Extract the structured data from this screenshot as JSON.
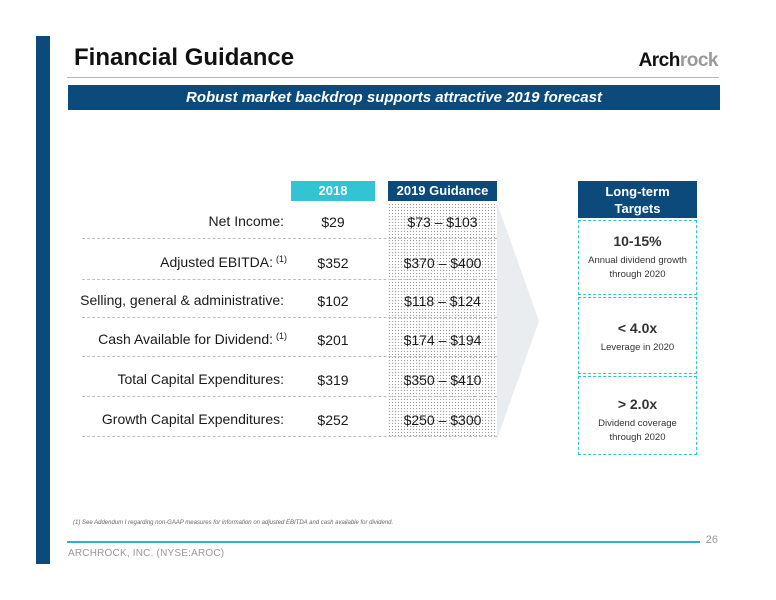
{
  "title": "Financial Guidance",
  "logo": {
    "part1": "Arch",
    "part2": "rock"
  },
  "banner": "Robust market backdrop supports attractive 2019 forecast",
  "table": {
    "col_2018": "2018",
    "col_2019": "2019 Guidance",
    "rows": [
      {
        "label": "Net Income:",
        "note": "",
        "v2018": "$29",
        "v2019": "$73 – $103"
      },
      {
        "label": "Adjusted EBITDA:",
        "note": "(1)",
        "v2018": "$352",
        "v2019": "$370 – $400"
      },
      {
        "label": "Selling, general & administrative:",
        "note": "",
        "v2018": "$102",
        "v2019": "$118 – $124"
      },
      {
        "label": "Cash Available for Dividend:",
        "note": "(1)",
        "v2018": "$201",
        "v2019": "$174 – $194"
      },
      {
        "label": "Total Capital Expenditures:",
        "note": "",
        "v2018": "$319",
        "v2019": "$350 – $410"
      },
      {
        "label": "Growth Capital Expenditures:",
        "note": "",
        "v2018": "$252",
        "v2019": "$250 – $300"
      }
    ]
  },
  "targets": {
    "header_line1": "Long-term",
    "header_line2": "Targets",
    "items": [
      {
        "value": "10-15%",
        "desc1": "Annual dividend growth",
        "desc2": "through 2020"
      },
      {
        "value": "< 4.0x",
        "desc1": "Leverage in 2020",
        "desc2": ""
      },
      {
        "value": "> 2.0x",
        "desc1": "Dividend coverage",
        "desc2": "through 2020"
      }
    ]
  },
  "footnote": "(1) See Addendum I regarding non-GAAP measures for information on adjusted EBITDA and cash available for dividend.",
  "page_number": "26",
  "footer": "ARCHROCK, INC. (NYSE:AROC)",
  "colors": {
    "navy": "#0b4a7a",
    "teal": "#33c4d4"
  }
}
